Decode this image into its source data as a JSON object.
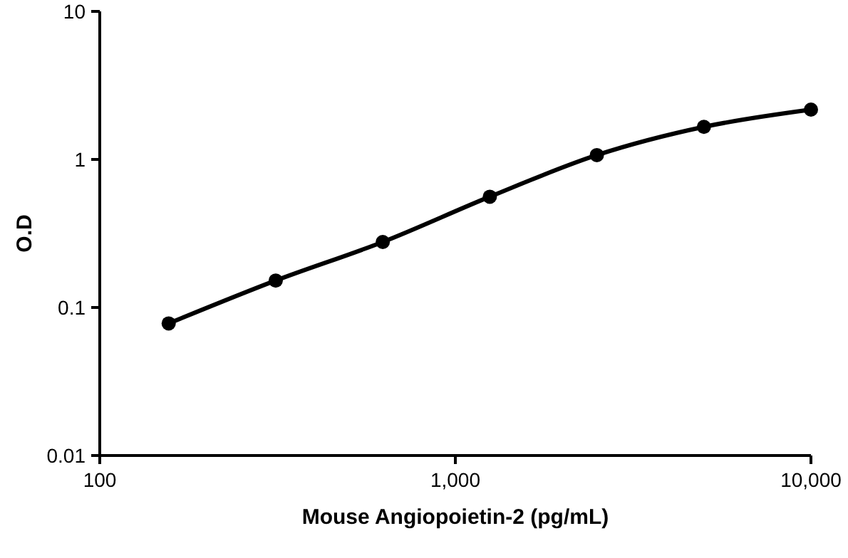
{
  "chart_data": {
    "type": "line",
    "xlabel": "Mouse Angiopoietin-2 (pg/mL)",
    "ylabel": "O.D",
    "log": "xy",
    "x": [
      156.25,
      312.5,
      625,
      1250,
      2500,
      5000,
      10000
    ],
    "series": [
      {
        "color": "#000000",
        "values": [
          0.078,
          0.152,
          0.277,
          0.56,
          1.07,
          1.66,
          2.17
        ]
      }
    ],
    "xlim": [
      100,
      10000
    ],
    "xticks": [
      100,
      {
        "value": 1000,
        "label": "1,000"
      },
      {
        "value": 10000,
        "label": "10,000"
      }
    ],
    "ylim": [
      0.01,
      10
    ],
    "yticks": [
      0.01,
      0.1,
      1,
      10
    ],
    "marker": "circle",
    "line_style": "solid",
    "grid": false
  }
}
